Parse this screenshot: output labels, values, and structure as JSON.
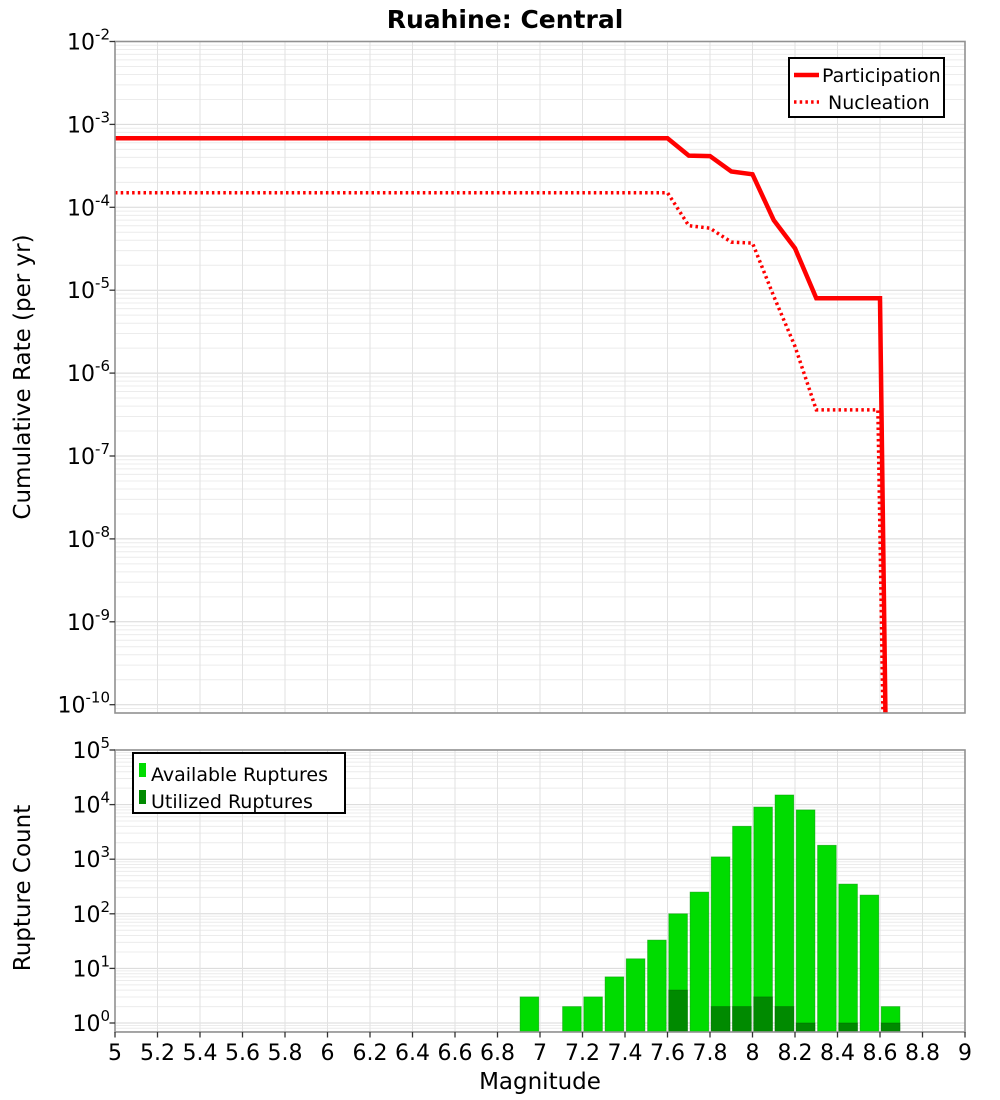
{
  "style": {
    "page_bg": "#FFFFFF",
    "plot_bg": "#FFFFFF",
    "grid_minor": "#ECECEC",
    "grid_major": "#D8D8D8",
    "grid_vertical": "#E2E2E2",
    "frame": "#919191",
    "tick": "#333333",
    "legend_border": "#000000",
    "line_red": "#FF0000",
    "available_green": "#00DC00",
    "utilized_green": "#008A00"
  },
  "chart_data": [
    {
      "type": "line",
      "title": "Ruahine: Central",
      "ylabel": "Cumulative Rate (per yr)",
      "x_range": [
        5,
        9
      ],
      "y_scale": "log",
      "y_tick_exponents": [
        -2,
        -3,
        -4,
        -5,
        -6,
        -7,
        -8,
        -9,
        -10
      ],
      "grid": true,
      "legend_position": "top-right",
      "series": [
        {
          "name": "Participation",
          "style": "solid",
          "color": "#FF0000",
          "line_width": 4.5,
          "points": [
            [
              5.0,
              0.00068
            ],
            [
              7.6,
              0.00068
            ],
            [
              7.7,
              0.00042
            ],
            [
              7.8,
              0.000415
            ],
            [
              7.9,
              0.00027
            ],
            [
              8.0,
              0.00025
            ],
            [
              8.1,
              7e-05
            ],
            [
              8.2,
              3.2e-05
            ],
            [
              8.3,
              8e-06
            ],
            [
              8.6,
              8e-06
            ],
            [
              8.63,
              1e-11
            ]
          ]
        },
        {
          "name": "Nucleation",
          "style": "dotted",
          "color": "#FF0000",
          "line_width": 3.5,
          "points": [
            [
              5.0,
              0.00015
            ],
            [
              7.6,
              0.00015
            ],
            [
              7.7,
              6e-05
            ],
            [
              7.8,
              5.6e-05
            ],
            [
              7.9,
              3.8e-05
            ],
            [
              8.0,
              3.7e-05
            ],
            [
              8.1,
              8.5e-06
            ],
            [
              8.2,
              2.1e-06
            ],
            [
              8.3,
              3.6e-07
            ],
            [
              8.59,
              3.6e-07
            ],
            [
              8.62,
              1e-11
            ]
          ]
        }
      ]
    },
    {
      "type": "bar",
      "ylabel": "Rupture Count",
      "xlabel": "Magnitude",
      "x_range": [
        5,
        9
      ],
      "y_scale": "log",
      "bin_width": 0.1,
      "y_tick_exponents": [
        5,
        4,
        3,
        2,
        1,
        0
      ],
      "x_tick_labels": [
        "5",
        "5.2",
        "5.4",
        "5.6",
        "5.8",
        "6",
        "6.2",
        "6.4",
        "6.6",
        "6.8",
        "7",
        "7.2",
        "7.4",
        "7.6",
        "7.8",
        "8",
        "8.2",
        "8.4",
        "8.6",
        "8.8",
        "9"
      ],
      "grid": true,
      "legend_position": "top-left",
      "series": [
        {
          "name": "Available Ruptures",
          "color": "#00DC00",
          "bins": [
            [
              6.95,
              3
            ],
            [
              7.15,
              2
            ],
            [
              7.25,
              3
            ],
            [
              7.35,
              7
            ],
            [
              7.45,
              15
            ],
            [
              7.55,
              33
            ],
            [
              7.65,
              100
            ],
            [
              7.75,
              250
            ],
            [
              7.85,
              1100
            ],
            [
              7.95,
              4000
            ],
            [
              8.05,
              9000
            ],
            [
              8.15,
              15000
            ],
            [
              8.25,
              8000
            ],
            [
              8.35,
              1800
            ],
            [
              8.45,
              350
            ],
            [
              8.55,
              220
            ],
            [
              8.65,
              2
            ]
          ]
        },
        {
          "name": "Utilized Ruptures",
          "color": "#008A00",
          "bins": [
            [
              7.65,
              4
            ],
            [
              7.85,
              2
            ],
            [
              7.95,
              2
            ],
            [
              8.05,
              3
            ],
            [
              8.15,
              2
            ],
            [
              8.25,
              1
            ],
            [
              8.45,
              1
            ],
            [
              8.65,
              1
            ]
          ]
        }
      ]
    }
  ]
}
